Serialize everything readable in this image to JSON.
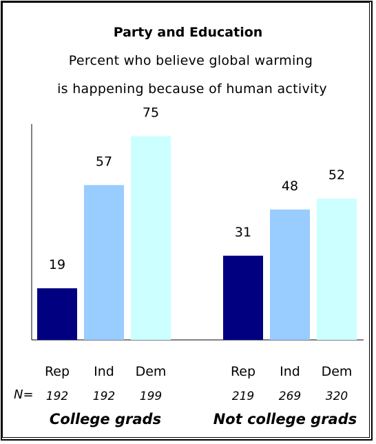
{
  "chart_data": {
    "type": "bar",
    "title": "Party and Education",
    "subtitle_lines": [
      "Percent who believe global warming",
      "is happening because of human activity"
    ],
    "ylim": [
      0,
      100
    ],
    "grid": false,
    "groups": [
      {
        "name": "College grads",
        "bars": [
          {
            "category": "Rep",
            "value": 19,
            "n": "192",
            "color": "#000080"
          },
          {
            "category": "Ind",
            "value": 57,
            "n": "192",
            "color": "#99ccff"
          },
          {
            "category": "Dem",
            "value": 75,
            "n": "199",
            "color": "#ccffff"
          }
        ]
      },
      {
        "name": "Not college grads",
        "bars": [
          {
            "category": "Rep",
            "value": 31,
            "n": "219",
            "color": "#000080"
          },
          {
            "category": "Ind",
            "value": 48,
            "n": "269",
            "color": "#99ccff"
          },
          {
            "category": "Dem",
            "value": 52,
            "n": "320",
            "color": "#ccffff"
          }
        ]
      }
    ],
    "n_prefix": "N="
  }
}
